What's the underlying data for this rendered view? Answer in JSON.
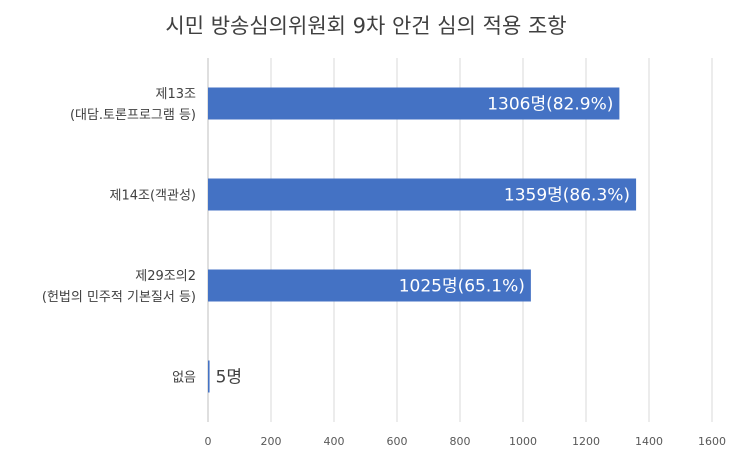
{
  "chart_data": {
    "type": "bar",
    "orientation": "horizontal",
    "title": "시민 방송심의위원회 9차 안건 심의 적용 조항",
    "categories": [
      [
        "제13조",
        "(대담.토론프로그램 등)"
      ],
      [
        "제14조(객관성)"
      ],
      [
        "제29조의2",
        "(헌법의 민주적 기본질서 등)"
      ],
      [
        "없음"
      ]
    ],
    "values": [
      1306,
      1359,
      1025,
      5
    ],
    "data_labels": [
      "1306명(82.9%)",
      "1359명(86.3%)",
      "1025명(65.1%)",
      "5명"
    ],
    "xlim": [
      0,
      1600
    ],
    "xticks": [
      0,
      200,
      400,
      600,
      800,
      1000,
      1200,
      1400,
      1600
    ],
    "grid": true,
    "bar_color": "#4472C4"
  }
}
